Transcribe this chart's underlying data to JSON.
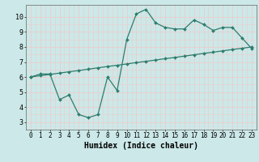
{
  "xlabel": "Humidex (Indice chaleur)",
  "bg_color": "#cce8e8",
  "line_color": "#2e7d6e",
  "grid_color": "#e8d0d0",
  "xlim": [
    -0.5,
    23.5
  ],
  "ylim": [
    2.5,
    10.8
  ],
  "x": [
    0,
    1,
    2,
    3,
    4,
    5,
    6,
    7,
    8,
    9,
    10,
    11,
    12,
    13,
    14,
    15,
    16,
    17,
    18,
    19,
    20,
    21,
    22,
    23
  ],
  "y_data": [
    6.0,
    6.2,
    6.2,
    4.5,
    4.8,
    3.5,
    3.3,
    3.5,
    6.0,
    5.1,
    8.5,
    10.2,
    10.5,
    9.6,
    9.3,
    9.2,
    9.2,
    9.8,
    9.5,
    9.1,
    9.3,
    9.3,
    8.6,
    7.9
  ],
  "y_trend": [
    6.0,
    6.09,
    6.17,
    6.26,
    6.35,
    6.43,
    6.52,
    6.61,
    6.7,
    6.78,
    6.87,
    6.96,
    7.04,
    7.13,
    7.22,
    7.3,
    7.39,
    7.48,
    7.57,
    7.65,
    7.74,
    7.83,
    7.91,
    8.0
  ],
  "xticks": [
    0,
    1,
    2,
    3,
    4,
    5,
    6,
    7,
    8,
    9,
    10,
    11,
    12,
    13,
    14,
    15,
    16,
    17,
    18,
    19,
    20,
    21,
    22,
    23
  ],
  "yticks": [
    3,
    4,
    5,
    6,
    7,
    8,
    9,
    10
  ],
  "tick_fontsize": 5.5,
  "label_fontsize": 7.0
}
